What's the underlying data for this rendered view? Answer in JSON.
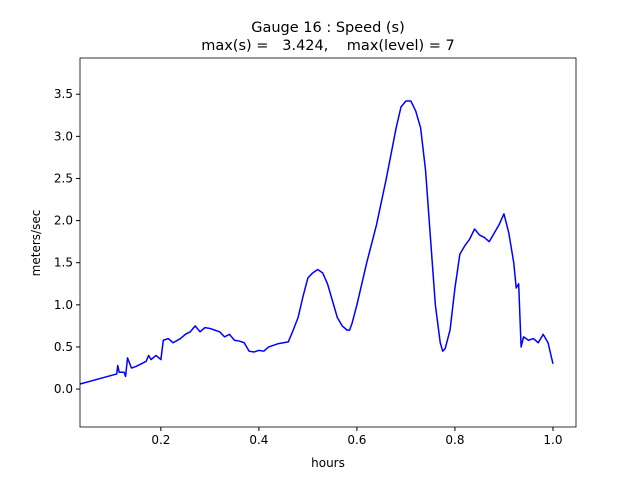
{
  "chart_data": {
    "type": "line",
    "title": "Gauge 16 : Speed (s)",
    "subtitle": "max(s) =   3.424,    max(level) = 7",
    "x_label": "hours",
    "y_label": "meters/sec",
    "xlim": [
      0.035,
      1.047
    ],
    "ylim": [
      -0.45,
      3.93
    ],
    "xticks": [
      0.2,
      0.4,
      0.6,
      0.8,
      {
        "value": 1,
        "label": "1.0"
      }
    ],
    "yticks": [
      {
        "value": 0,
        "label": "0.0"
      },
      0.5,
      {
        "value": 1,
        "label": "1.0"
      },
      1.5,
      {
        "value": 2,
        "label": "2.0"
      },
      2.5,
      {
        "value": 3,
        "label": "3.0"
      },
      3.5
    ],
    "series": [
      {
        "name": "s",
        "color": "#0000ff",
        "x": [
          0.035,
          0.11,
          0.112,
          0.115,
          0.125,
          0.128,
          0.132,
          0.14,
          0.15,
          0.16,
          0.17,
          0.175,
          0.18,
          0.19,
          0.2,
          0.205,
          0.215,
          0.225,
          0.24,
          0.25,
          0.26,
          0.27,
          0.28,
          0.29,
          0.3,
          0.31,
          0.32,
          0.33,
          0.34,
          0.35,
          0.36,
          0.37,
          0.38,
          0.39,
          0.4,
          0.41,
          0.42,
          0.44,
          0.46,
          0.47,
          0.48,
          0.49,
          0.5,
          0.51,
          0.52,
          0.53,
          0.54,
          0.55,
          0.56,
          0.57,
          0.58,
          0.585,
          0.59,
          0.6,
          0.62,
          0.64,
          0.66,
          0.68,
          0.69,
          0.7,
          0.71,
          0.72,
          0.73,
          0.74,
          0.75,
          0.76,
          0.77,
          0.775,
          0.78,
          0.79,
          0.8,
          0.81,
          0.82,
          0.83,
          0.84,
          0.85,
          0.86,
          0.87,
          0.88,
          0.89,
          0.9,
          0.91,
          0.92,
          0.925,
          0.93,
          0.935,
          0.94,
          0.95,
          0.96,
          0.97,
          0.98,
          0.99,
          1.0
        ],
        "values": [
          0.06,
          0.18,
          0.28,
          0.2,
          0.2,
          0.15,
          0.37,
          0.25,
          0.27,
          0.3,
          0.33,
          0.4,
          0.35,
          0.4,
          0.35,
          0.58,
          0.6,
          0.55,
          0.6,
          0.65,
          0.68,
          0.75,
          0.68,
          0.73,
          0.72,
          0.7,
          0.68,
          0.62,
          0.65,
          0.58,
          0.57,
          0.55,
          0.45,
          0.44,
          0.46,
          0.45,
          0.5,
          0.54,
          0.56,
          0.7,
          0.85,
          1.1,
          1.32,
          1.38,
          1.42,
          1.38,
          1.25,
          1.05,
          0.85,
          0.75,
          0.7,
          0.7,
          0.78,
          1.0,
          1.5,
          1.95,
          2.5,
          3.1,
          3.35,
          3.42,
          3.42,
          3.3,
          3.1,
          2.6,
          1.8,
          1.0,
          0.55,
          0.45,
          0.48,
          0.7,
          1.2,
          1.6,
          1.7,
          1.78,
          1.9,
          1.83,
          1.8,
          1.75,
          1.85,
          1.95,
          2.08,
          1.85,
          1.5,
          1.2,
          1.25,
          0.5,
          0.62,
          0.58,
          0.6,
          0.55,
          0.65,
          0.55,
          0.3
        ]
      }
    ]
  }
}
